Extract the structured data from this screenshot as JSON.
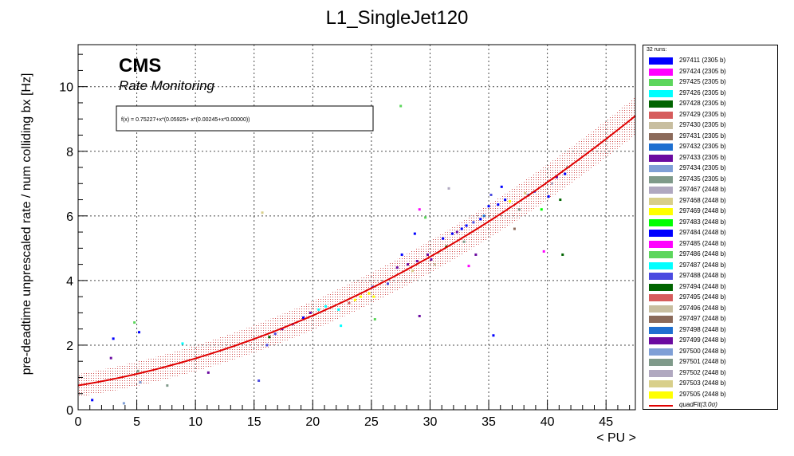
{
  "chart_data": {
    "type": "scatter",
    "title": "L1_SingleJet120",
    "xlabel": "< PU >",
    "ylabel": "pre-deadtime unprescaled rate / num colliding bx [Hz]",
    "xlim": [
      0,
      47.5
    ],
    "ylim": [
      0,
      11.3
    ],
    "xticks": [
      0,
      5,
      10,
      15,
      20,
      25,
      30,
      35,
      40,
      45
    ],
    "yticks": [
      0,
      2,
      4,
      6,
      8,
      10
    ],
    "grid": true,
    "legend_position": "right",
    "annotations": {
      "experiment": "CMS",
      "subtitle": "Rate Monitoring",
      "fit_formula": "f(x) = 0.75227+x*(0.05925+ x*(0.00245+x*0.00000))"
    },
    "fit": {
      "name": "quadFit(3.0σ)",
      "coefficients": [
        0.75227,
        0.05925,
        0.00245,
        0.0
      ],
      "band_sigma": 3.0,
      "color": "#e00000"
    },
    "legend_header": "32 runs:",
    "series": [
      {
        "name": "297411 (2305 b)",
        "color": "#0000ff"
      },
      {
        "name": "297424 (2305 b)",
        "color": "#ff00ff"
      },
      {
        "name": "297425 (2305 b)",
        "color": "#5cd65c"
      },
      {
        "name": "297426 (2305 b)",
        "color": "#00ffff"
      },
      {
        "name": "297428 (2305 b)",
        "color": "#006400"
      },
      {
        "name": "297429 (2305 b)",
        "color": "#d65c5c"
      },
      {
        "name": "297430 (2305 b)",
        "color": "#c8bea0"
      },
      {
        "name": "297431 (2305 b)",
        "color": "#8b6a5a"
      },
      {
        "name": "297432 (2305 b)",
        "color": "#1e6fd0"
      },
      {
        "name": "297433 (2305 b)",
        "color": "#6a0aa0"
      },
      {
        "name": "297434 (2305 b)",
        "color": "#7f9fd6"
      },
      {
        "name": "297435 (2305 b)",
        "color": "#7f9a8a"
      },
      {
        "name": "297467 (2448 b)",
        "color": "#b0a8c0"
      },
      {
        "name": "297468 (2448 b)",
        "color": "#d8cf8a"
      },
      {
        "name": "297469 (2448 b)",
        "color": "#ffff00"
      },
      {
        "name": "297483 (2448 b)",
        "color": "#00ff00"
      },
      {
        "name": "297484 (2448 b)",
        "color": "#0000ff"
      },
      {
        "name": "297485 (2448 b)",
        "color": "#ff00ff"
      },
      {
        "name": "297486 (2448 b)",
        "color": "#5cd65c"
      },
      {
        "name": "297487 (2448 b)",
        "color": "#00ffff"
      },
      {
        "name": "297488 (2448 b)",
        "color": "#4a4ae0"
      },
      {
        "name": "297494 (2448 b)",
        "color": "#006400"
      },
      {
        "name": "297495 (2448 b)",
        "color": "#d65c5c"
      },
      {
        "name": "297496 (2448 b)",
        "color": "#c8bea0"
      },
      {
        "name": "297497 (2448 b)",
        "color": "#8b6a5a"
      },
      {
        "name": "297498 (2448 b)",
        "color": "#1e6fd0"
      },
      {
        "name": "297499 (2448 b)",
        "color": "#6a0aa0"
      },
      {
        "name": "297500 (2448 b)",
        "color": "#7f9fd6"
      },
      {
        "name": "297501 (2448 b)",
        "color": "#7f9a8a"
      },
      {
        "name": "297502 (2448 b)",
        "color": "#b0a8c0"
      },
      {
        "name": "297503 (2448 b)",
        "color": "#d8cf8a"
      },
      {
        "name": "297505 (2448 b)",
        "color": "#ffff00"
      }
    ],
    "points": [
      [
        1.2,
        0.3,
        16
      ],
      [
        2.8,
        1.6,
        9
      ],
      [
        3.0,
        2.2,
        16
      ],
      [
        3.9,
        0.2,
        10
      ],
      [
        4.8,
        2.7,
        2
      ],
      [
        5.1,
        1.2,
        28
      ],
      [
        5.2,
        2.4,
        0
      ],
      [
        5.3,
        0.85,
        27
      ],
      [
        7.6,
        0.75,
        28
      ],
      [
        8.9,
        2.05,
        19
      ],
      [
        11.1,
        1.15,
        26
      ],
      [
        15.4,
        0.9,
        20
      ],
      [
        15.7,
        6.1,
        13
      ],
      [
        16.1,
        2.0,
        20
      ],
      [
        16.3,
        2.25,
        4
      ],
      [
        16.8,
        2.35,
        20
      ],
      [
        17.4,
        2.5,
        26
      ],
      [
        18.3,
        2.65,
        20
      ],
      [
        19.2,
        2.85,
        16
      ],
      [
        19.8,
        3.0,
        26
      ],
      [
        20.5,
        3.1,
        19
      ],
      [
        21.1,
        3.2,
        19
      ],
      [
        22.2,
        3.1,
        19
      ],
      [
        22.4,
        2.6,
        19
      ],
      [
        23.1,
        3.3,
        5
      ],
      [
        23.6,
        3.4,
        14
      ],
      [
        24.1,
        3.5,
        14
      ],
      [
        24.8,
        3.6,
        14
      ],
      [
        25.2,
        3.5,
        14
      ],
      [
        25.1,
        3.8,
        20
      ],
      [
        25.3,
        2.8,
        2
      ],
      [
        26.4,
        3.9,
        20
      ],
      [
        27.2,
        4.4,
        26
      ],
      [
        27.6,
        4.8,
        0
      ],
      [
        27.5,
        9.4,
        2
      ],
      [
        28.1,
        4.5,
        9
      ],
      [
        28.5,
        4.3,
        13
      ],
      [
        28.7,
        5.45,
        16
      ],
      [
        28.9,
        4.6,
        9
      ],
      [
        29.1,
        6.2,
        17
      ],
      [
        29.1,
        2.9,
        26
      ],
      [
        29.6,
        5.95,
        18
      ],
      [
        29.8,
        4.8,
        26
      ],
      [
        30.1,
        4.65,
        9
      ],
      [
        30.4,
        4.5,
        6
      ],
      [
        30.7,
        4.85,
        23
      ],
      [
        31.1,
        5.3,
        0
      ],
      [
        31.4,
        5.05,
        4
      ],
      [
        31.6,
        6.85,
        12
      ],
      [
        31.9,
        5.45,
        16
      ],
      [
        32.3,
        5.5,
        26
      ],
      [
        32.7,
        5.6,
        0
      ],
      [
        32.9,
        5.2,
        28
      ],
      [
        33.1,
        5.7,
        0
      ],
      [
        33.3,
        4.45,
        17
      ],
      [
        33.7,
        5.8,
        20
      ],
      [
        33.9,
        4.8,
        26
      ],
      [
        34.3,
        5.9,
        16
      ],
      [
        34.6,
        6.0,
        8
      ],
      [
        35.0,
        6.3,
        0
      ],
      [
        35.2,
        6.65,
        20
      ],
      [
        35.4,
        2.3,
        16
      ],
      [
        35.8,
        6.35,
        0
      ],
      [
        36.1,
        6.9,
        16
      ],
      [
        36.4,
        6.5,
        0
      ],
      [
        36.8,
        6.45,
        14
      ],
      [
        37.2,
        5.6,
        7
      ],
      [
        37.6,
        6.2,
        11
      ],
      [
        38.1,
        6.7,
        13
      ],
      [
        38.4,
        6.65,
        8
      ],
      [
        38.9,
        6.75,
        20
      ],
      [
        39.5,
        6.2,
        15
      ],
      [
        39.7,
        4.9,
        17
      ],
      [
        40.1,
        6.6,
        16
      ],
      [
        40.4,
        7.0,
        29
      ],
      [
        40.8,
        7.2,
        9
      ],
      [
        41.1,
        6.5,
        21
      ],
      [
        41.3,
        4.8,
        21
      ],
      [
        41.5,
        7.3,
        16
      ],
      [
        41.7,
        7.5,
        11
      ]
    ]
  }
}
